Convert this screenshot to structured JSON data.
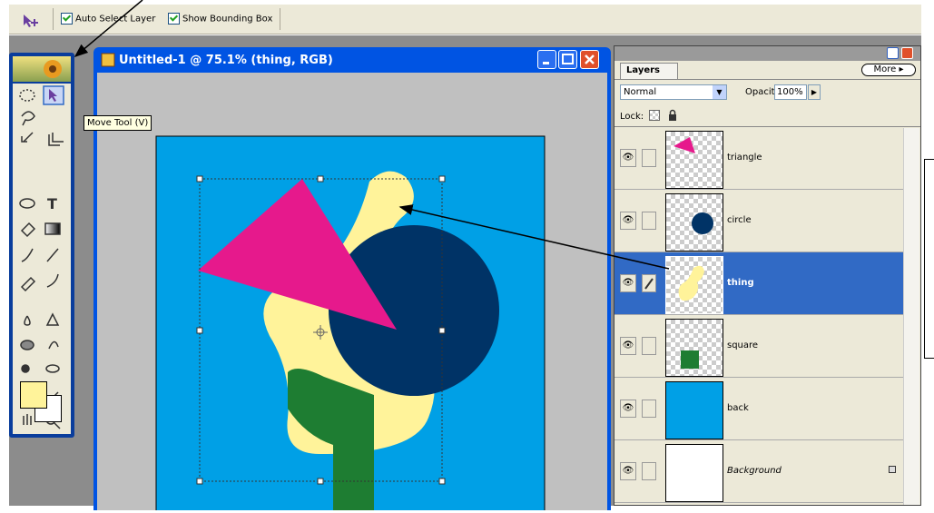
{
  "options_bar": {
    "auto_select": "Auto Select Layer",
    "bounding_box": "Show Bounding Box"
  },
  "document": {
    "title": "Untitled-1 @ 75.1% (thing, RGB)"
  },
  "tooltip": "Move Tool (V)",
  "layers_panel": {
    "tab": "Layers",
    "more": "More",
    "blend_mode": "Normal",
    "opacity_label": "Opacity:",
    "opacity": "100%",
    "lock_label": "Lock:",
    "layers": [
      "triangle",
      "circle",
      "thing",
      "square",
      "back",
      "Background"
    ]
  }
}
